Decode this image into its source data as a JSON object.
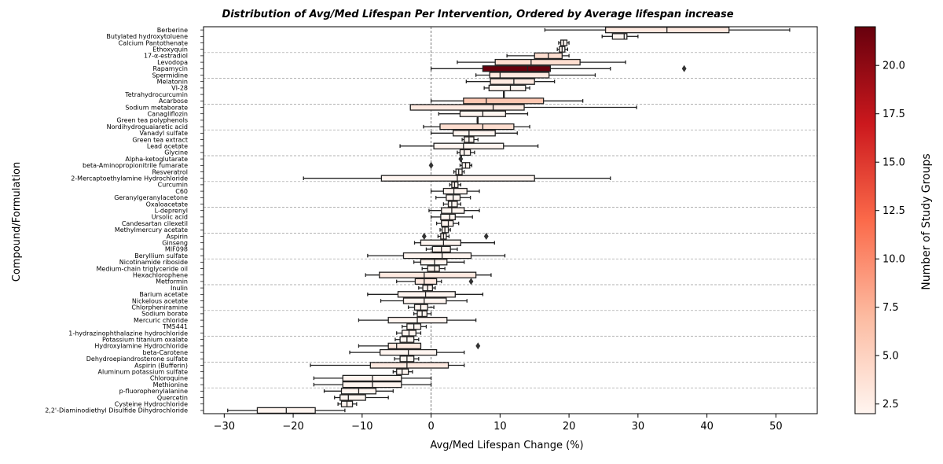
{
  "chart_data": {
    "type": "box",
    "title": "Distribution of Avg/Med Lifespan Per Intervention, Ordered by Average lifespan increase",
    "xlabel": "Avg/Med Lifespan Change (%)",
    "ylabel": "Compound/Formulation",
    "xlim": [
      -33,
      56
    ],
    "xticks": [
      -30,
      -20,
      -10,
      0,
      10,
      20,
      30,
      40,
      50
    ],
    "grid": "horizontal dashed lines every 4 categories; vertical dashed line at 0",
    "colorbar": {
      "label": "Number of Study Groups",
      "range": [
        2,
        22
      ],
      "ticks": [
        2.5,
        5.0,
        7.5,
        10.0,
        12.5,
        15.0,
        17.5,
        20.0
      ],
      "colors": [
        "#fff5f0",
        "#fcbba1",
        "#fb6a4a",
        "#cb181d",
        "#67000d"
      ]
    },
    "categories": [
      "Berberine",
      "Butylated hydroxytoluene",
      "Calcium Pantothenate",
      "Ethoxyquin",
      "17-α-estradiol",
      "Levodopa",
      "Rapamycin",
      "Spermidine",
      "Melatonin",
      "VI-28",
      "Tetrahydrocurcumin",
      "Acarbose",
      "Sodium metaborate",
      "Canagliflozin",
      "Green tea polyphenols",
      "Nordihydroguaiaretic acid",
      "Vanadyl sulfate",
      "Green tea extract",
      "Lead acetate",
      "Glycine",
      "Alpha-ketoglutarate",
      "beta-Aminopropionitrile fumarate",
      "Resveratrol",
      "2-Mercaptoethylamine Hydrochloride",
      "Curcumin",
      "C60",
      "Geranylgeranylacetone",
      "Oxaloacetate",
      "L-deprenyl",
      "Ursolic  acid",
      "Candesartan cilexetil",
      "Methylmercury acetate",
      "Aspirin",
      "Ginseng",
      "MIF098",
      "Beryllium sulfate",
      "Nicotinamide riboside",
      "Medium-chain triglyceride oil",
      "Hexachlorophene",
      "Metformin",
      "Inulin",
      "Barium acetate",
      "Nickelous acetate",
      "Chlorpheniramine",
      "Sodium borate",
      "Mercuric chloride",
      "TM5441",
      "1-hydrazinophthalazine hydrochloride",
      "Potassium titanium oxalate",
      "Hydroxylamine Hydrochloride",
      "beta-Carotene",
      "Dehydroepiandrosterone sulfate",
      "Aspirin (Bufferin)",
      "Aluminum potassium sulfate",
      "Chloroquine",
      "Methionine",
      "p-fluorophenylalanine",
      "Quercetin",
      "Cysteine Hydrochloride",
      "2,2'-Diaminodiethyl Disulfide Dihydrochloride"
    ],
    "boxes": [
      {
        "wl": 16.5,
        "q1": 25.3,
        "med": 34.2,
        "q3": 43.2,
        "wh": 52.0,
        "n": 3,
        "fliers": []
      },
      {
        "wl": 24.8,
        "q1": 26.3,
        "med": 28.0,
        "q3": 28.4,
        "wh": 30.0,
        "n": 2,
        "fliers": []
      },
      {
        "wl": 18.5,
        "q1": 18.8,
        "med": 19.2,
        "q3": 19.7,
        "wh": 20.0,
        "n": 2,
        "fliers": []
      },
      {
        "wl": 18.3,
        "q1": 18.6,
        "med": 19.0,
        "q3": 19.4,
        "wh": 19.8,
        "n": 2,
        "fliers": []
      },
      {
        "wl": 11.0,
        "q1": 15.0,
        "med": 17.0,
        "q3": 19.0,
        "wh": 20.0,
        "n": 4,
        "fliers": []
      },
      {
        "wl": 3.8,
        "q1": 9.3,
        "med": 14.5,
        "q3": 21.6,
        "wh": 28.2,
        "n": 4,
        "fliers": []
      },
      {
        "wl": 0.0,
        "q1": 7.5,
        "med": 14.0,
        "q3": 17.3,
        "wh": 26.0,
        "n": 22,
        "fliers": [
          36.7
        ]
      },
      {
        "wl": 6.5,
        "q1": 8.5,
        "med": 10.0,
        "q3": 17.1,
        "wh": 23.8,
        "n": 3,
        "fliers": []
      },
      {
        "wl": 5.1,
        "q1": 8.6,
        "med": 12.0,
        "q3": 15.0,
        "wh": 17.9,
        "n": 3,
        "fliers": []
      },
      {
        "wl": 7.7,
        "q1": 8.4,
        "med": 11.5,
        "q3": 13.7,
        "wh": 14.3,
        "n": 2,
        "fliers": []
      },
      {
        "wl": 10.5,
        "q1": 10.5,
        "med": 10.5,
        "q3": 10.5,
        "wh": 10.5,
        "n": 2,
        "fliers": []
      },
      {
        "wl": 0.0,
        "q1": 4.7,
        "med": 8.0,
        "q3": 16.3,
        "wh": 22.0,
        "n": 6,
        "fliers": []
      },
      {
        "wl": -3.0,
        "q1": -3.0,
        "med": 9.0,
        "q3": 13.5,
        "wh": 29.8,
        "n": 3,
        "fliers": []
      },
      {
        "wl": 1.1,
        "q1": 4.2,
        "med": 7.5,
        "q3": 10.8,
        "wh": 14.0,
        "n": 2,
        "fliers": []
      },
      {
        "wl": 6.7,
        "q1": 6.7,
        "med": 6.7,
        "q3": 6.7,
        "wh": 6.7,
        "n": 2,
        "fliers": []
      },
      {
        "wl": -1.1,
        "q1": 1.3,
        "med": 7.5,
        "q3": 12.0,
        "wh": 14.3,
        "n": 4,
        "fliers": []
      },
      {
        "wl": 0.0,
        "q1": 3.2,
        "med": 5.5,
        "q3": 9.3,
        "wh": 12.5,
        "n": 2,
        "fliers": []
      },
      {
        "wl": 4.5,
        "q1": 4.8,
        "med": 5.5,
        "q3": 6.2,
        "wh": 6.8,
        "n": 2,
        "fliers": []
      },
      {
        "wl": -4.5,
        "q1": 0.4,
        "med": 4.7,
        "q3": 10.5,
        "wh": 15.5,
        "n": 2,
        "fliers": []
      },
      {
        "wl": 3.8,
        "q1": 4.2,
        "med": 4.8,
        "q3": 5.7,
        "wh": 6.3,
        "n": 2,
        "fliers": []
      },
      {
        "wl": 4.3,
        "q1": 4.3,
        "med": 4.3,
        "q3": 4.3,
        "wh": 4.3,
        "n": 2,
        "fliers": [
          4.3
        ]
      },
      {
        "wl": 4.2,
        "q1": 4.5,
        "med": 5.0,
        "q3": 5.6,
        "wh": 5.9,
        "n": 2,
        "fliers": [
          0.0
        ]
      },
      {
        "wl": 3.3,
        "q1": 3.6,
        "med": 4.0,
        "q3": 4.5,
        "wh": 4.8,
        "n": 2,
        "fliers": []
      },
      {
        "wl": -18.5,
        "q1": -7.2,
        "med": 3.8,
        "q3": 15.0,
        "wh": 26.0,
        "n": 2,
        "fliers": []
      },
      {
        "wl": 2.7,
        "q1": 3.0,
        "med": 3.4,
        "q3": 3.9,
        "wh": 4.3,
        "n": 2,
        "fliers": []
      },
      {
        "wl": 0.0,
        "q1": 1.8,
        "med": 3.3,
        "q3": 5.2,
        "wh": 7.0,
        "n": 2,
        "fliers": []
      },
      {
        "wl": 0.7,
        "q1": 2.2,
        "med": 3.2,
        "q3": 4.2,
        "wh": 5.7,
        "n": 2,
        "fliers": []
      },
      {
        "wl": 1.8,
        "q1": 2.5,
        "med": 3.0,
        "q3": 3.8,
        "wh": 4.3,
        "n": 2,
        "fliers": []
      },
      {
        "wl": -0.3,
        "q1": 1.5,
        "med": 3.0,
        "q3": 4.8,
        "wh": 7.0,
        "n": 2,
        "fliers": []
      },
      {
        "wl": 0.0,
        "q1": 1.4,
        "med": 2.7,
        "q3": 3.5,
        "wh": 6.0,
        "n": 2,
        "fliers": []
      },
      {
        "wl": 0.8,
        "q1": 1.5,
        "med": 2.5,
        "q3": 3.2,
        "wh": 4.0,
        "n": 2,
        "fliers": []
      },
      {
        "wl": 1.3,
        "q1": 1.6,
        "med": 2.0,
        "q3": 2.5,
        "wh": 2.8,
        "n": 2,
        "fliers": []
      },
      {
        "wl": 1.0,
        "q1": 1.4,
        "med": 1.8,
        "q3": 2.2,
        "wh": 2.6,
        "n": 2,
        "fliers": [
          -1.0,
          8.0
        ]
      },
      {
        "wl": -2.4,
        "q1": -1.5,
        "med": 1.8,
        "q3": 4.3,
        "wh": 9.2,
        "n": 2,
        "fliers": []
      },
      {
        "wl": -0.7,
        "q1": 0.2,
        "med": 1.5,
        "q3": 2.8,
        "wh": 3.8,
        "n": 2,
        "fliers": []
      },
      {
        "wl": -9.2,
        "q1": -4.0,
        "med": 1.6,
        "q3": 5.8,
        "wh": 10.7,
        "n": 2,
        "fliers": []
      },
      {
        "wl": -2.5,
        "q1": -1.5,
        "med": 0.5,
        "q3": 2.3,
        "wh": 4.8,
        "n": 2,
        "fliers": []
      },
      {
        "wl": -1.3,
        "q1": -0.5,
        "med": 0.5,
        "q3": 1.2,
        "wh": 2.0,
        "n": 2,
        "fliers": []
      },
      {
        "wl": -9.5,
        "q1": -7.5,
        "med": -1.0,
        "q3": 6.5,
        "wh": 8.7,
        "n": 3,
        "fliers": []
      },
      {
        "wl": -5.0,
        "q1": -2.3,
        "med": -1.0,
        "q3": 0.8,
        "wh": 1.5,
        "n": 3,
        "fliers": [
          5.8
        ]
      },
      {
        "wl": -1.8,
        "q1": -1.2,
        "med": -0.5,
        "q3": 0.2,
        "wh": 0.6,
        "n": 2,
        "fliers": []
      },
      {
        "wl": -9.2,
        "q1": -4.8,
        "med": -0.8,
        "q3": 3.5,
        "wh": 7.5,
        "n": 2,
        "fliers": []
      },
      {
        "wl": -7.3,
        "q1": -4.0,
        "med": -1.0,
        "q3": 2.2,
        "wh": 5.2,
        "n": 2,
        "fliers": []
      },
      {
        "wl": -3.3,
        "q1": -2.4,
        "med": -1.5,
        "q3": -0.5,
        "wh": 0.4,
        "n": 2,
        "fliers": []
      },
      {
        "wl": -2.5,
        "q1": -2.0,
        "med": -1.3,
        "q3": -0.6,
        "wh": 0.0,
        "n": 2,
        "fliers": []
      },
      {
        "wl": -10.5,
        "q1": -6.2,
        "med": -2.0,
        "q3": 2.3,
        "wh": 6.5,
        "n": 2,
        "fliers": []
      },
      {
        "wl": -4.2,
        "q1": -3.5,
        "med": -2.5,
        "q3": -1.5,
        "wh": -0.7,
        "n": 2,
        "fliers": []
      },
      {
        "wl": -5.0,
        "q1": -4.2,
        "med": -3.2,
        "q3": -2.2,
        "wh": -1.5,
        "n": 2,
        "fliers": []
      },
      {
        "wl": -5.2,
        "q1": -4.5,
        "med": -3.5,
        "q3": -2.5,
        "wh": -1.8,
        "n": 2,
        "fliers": []
      },
      {
        "wl": -10.5,
        "q1": -6.2,
        "med": -5.0,
        "q3": -1.5,
        "wh": -1.5,
        "n": 3,
        "fliers": [
          6.8
        ]
      },
      {
        "wl": -11.8,
        "q1": -7.4,
        "med": -3.3,
        "q3": 0.8,
        "wh": 4.8,
        "n": 2,
        "fliers": []
      },
      {
        "wl": -5.3,
        "q1": -4.5,
        "med": -3.5,
        "q3": -2.5,
        "wh": -1.8,
        "n": 2,
        "fliers": []
      },
      {
        "wl": -17.5,
        "q1": -8.8,
        "med": -3.5,
        "q3": 2.5,
        "wh": 4.8,
        "n": 3,
        "fliers": []
      },
      {
        "wl": -5.5,
        "q1": -5.0,
        "med": -4.2,
        "q3": -3.3,
        "wh": -2.7,
        "n": 2,
        "fliers": []
      },
      {
        "wl": -17.0,
        "q1": -12.8,
        "med": -8.5,
        "q3": -4.3,
        "wh": 0.0,
        "n": 2,
        "fliers": []
      },
      {
        "wl": -17.0,
        "q1": -12.8,
        "med": -8.5,
        "q3": -4.3,
        "wh": 0.0,
        "n": 2,
        "fliers": []
      },
      {
        "wl": -15.5,
        "q1": -13.0,
        "med": -10.5,
        "q3": -8.0,
        "wh": -5.5,
        "n": 2,
        "fliers": []
      },
      {
        "wl": -14.0,
        "q1": -13.2,
        "med": -12.0,
        "q3": -9.5,
        "wh": -6.2,
        "n": 2,
        "fliers": []
      },
      {
        "wl": -13.5,
        "q1": -13.0,
        "med": -12.2,
        "q3": -11.4,
        "wh": -10.8,
        "n": 2,
        "fliers": []
      },
      {
        "wl": -29.5,
        "q1": -25.2,
        "med": -21.0,
        "q3": -16.8,
        "wh": -12.5,
        "n": 2,
        "fliers": []
      }
    ]
  }
}
